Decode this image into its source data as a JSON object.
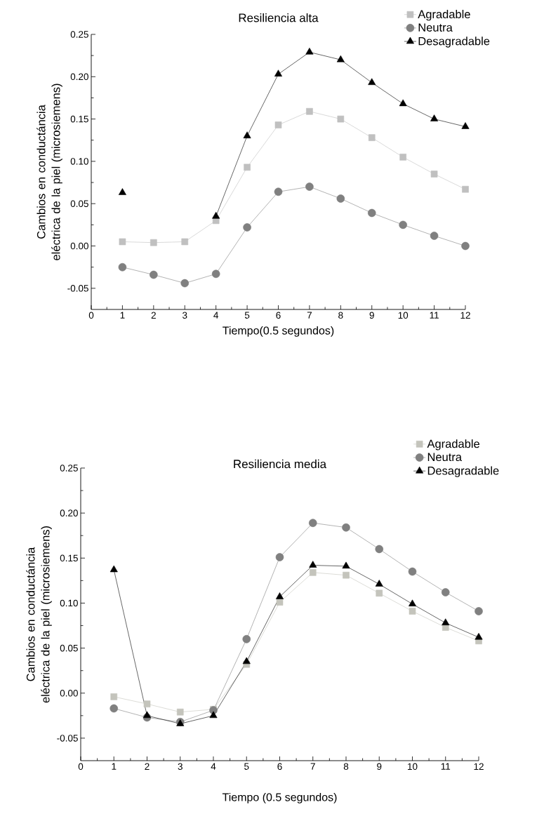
{
  "chart_data": [
    {
      "type": "line",
      "title": "Resiliencia alta",
      "xlabel": "Tiempo(0.5 segundos)",
      "ylabel": "Cambios en conductáncia eléctrica de la piel (microsiemens)",
      "x": [
        1,
        2,
        3,
        4,
        5,
        6,
        7,
        8,
        9,
        10,
        11,
        12
      ],
      "series": [
        {
          "name": "Agradable",
          "color": "#c0c0c0",
          "marker": "square",
          "values": [
            0.005,
            0.004,
            0.005,
            0.03,
            0.093,
            0.143,
            0.159,
            0.15,
            0.128,
            0.105,
            0.085,
            0.067
          ]
        },
        {
          "name": "Neutra",
          "color": "#808080",
          "marker": "circle",
          "values": [
            -0.025,
            -0.034,
            -0.044,
            -0.033,
            0.022,
            0.064,
            0.07,
            0.056,
            0.039,
            0.025,
            0.012,
            0.0
          ]
        },
        {
          "name": "Desagradable",
          "color": "#000000",
          "marker": "triangle",
          "values": [
            0.063,
            null,
            null,
            0.035,
            0.13,
            0.203,
            0.229,
            0.22,
            0.193,
            0.168,
            0.15,
            0.141
          ]
        }
      ],
      "xlim": [
        0,
        12
      ],
      "xticks": [
        0,
        1,
        2,
        3,
        4,
        5,
        6,
        7,
        8,
        9,
        10,
        11,
        12
      ],
      "ylim": [
        -0.075,
        0.25
      ],
      "yticks": [
        {
          "value": -0.05,
          "label": "-0.05"
        },
        {
          "value": 0,
          "label": "0.00"
        },
        {
          "value": 0.05,
          "label": "0.05"
        },
        {
          "value": 0.1,
          "label": "0.10"
        },
        {
          "value": 0.15,
          "label": "0.15"
        },
        {
          "value": 0.2,
          "label": "0.20"
        },
        {
          "value": 0.25,
          "label": "0.25"
        }
      ],
      "grid": false,
      "legend": "top right"
    },
    {
      "type": "line",
      "title": "Resiliencia media",
      "xlabel": "Tiempo (0.5 segundos)",
      "ylabel": "Cambios en conductáncia eléctrica de la piel (microsiemens)",
      "x": [
        1,
        2,
        3,
        4,
        5,
        6,
        7,
        8,
        9,
        10,
        11,
        12
      ],
      "series": [
        {
          "name": "Agradable",
          "color": "#c4c4bc",
          "marker": "square",
          "values": [
            -0.004,
            -0.012,
            -0.021,
            -0.018,
            0.032,
            0.101,
            0.134,
            0.131,
            0.111,
            0.091,
            0.073,
            0.058
          ]
        },
        {
          "name": "Neutra",
          "color": "#808080",
          "marker": "circle",
          "values": [
            -0.017,
            -0.027,
            -0.032,
            -0.019,
            0.06,
            0.151,
            0.189,
            0.184,
            0.16,
            0.135,
            0.112,
            0.091
          ]
        },
        {
          "name": "Desagradable",
          "color": "#000000",
          "marker": "triangle",
          "values": [
            0.137,
            -0.025,
            -0.034,
            -0.025,
            0.035,
            0.107,
            0.142,
            0.141,
            0.121,
            0.099,
            0.078,
            0.062
          ]
        }
      ],
      "xlim": [
        0,
        12
      ],
      "xticks": [
        0,
        1,
        2,
        3,
        4,
        5,
        6,
        7,
        8,
        9,
        10,
        11,
        12
      ],
      "ylim": [
        -0.075,
        0.25
      ],
      "yticks": [
        {
          "value": -0.05,
          "label": "-0.05"
        },
        {
          "value": 0,
          "label": "0.00"
        },
        {
          "value": 0.05,
          "label": "0.05"
        },
        {
          "value": 0.1,
          "label": "0.10"
        },
        {
          "value": 0.15,
          "label": "0.15"
        },
        {
          "value": 0.2,
          "label": "0.20"
        },
        {
          "value": 0.25,
          "label": "0.25"
        }
      ],
      "grid": false,
      "legend": "top right"
    }
  ]
}
